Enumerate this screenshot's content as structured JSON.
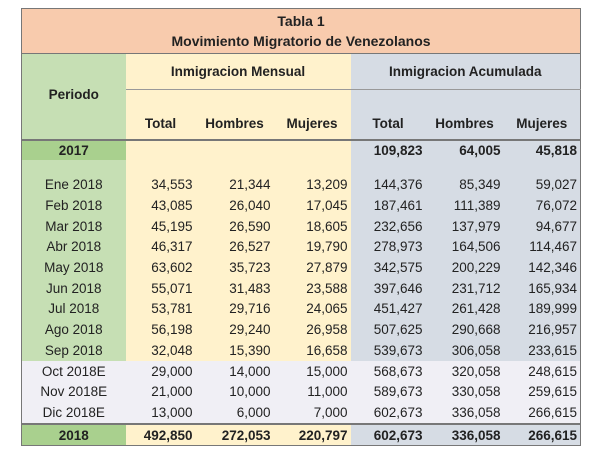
{
  "title": "Tabla 1",
  "subtitle": "Movimiento Migratorio de Venezolanos",
  "headers": {
    "periodo": "Periodo",
    "mensual": "Inmigracion Mensual",
    "acumulada": "Inmigracion Acumulada",
    "cols": [
      "Total",
      "Hombres",
      "Mujeres",
      "Total",
      "Hombres",
      "Mujeres"
    ]
  },
  "row2017": {
    "periodo": "2017",
    "values": [
      "",
      "",
      "",
      "109,823",
      "64,005",
      "45,818"
    ]
  },
  "rows": [
    {
      "periodo": "Ene 2018",
      "values": [
        "34,553",
        "21,344",
        "13,209",
        "144,376",
        "85,349",
        "59,027"
      ]
    },
    {
      "periodo": "Feb 2018",
      "values": [
        "43,085",
        "26,040",
        "17,045",
        "187,461",
        "111,389",
        "76,072"
      ]
    },
    {
      "periodo": "Mar 2018",
      "values": [
        "45,195",
        "26,590",
        "18,605",
        "232,656",
        "137,979",
        "94,677"
      ]
    },
    {
      "periodo": "Abr 2018",
      "values": [
        "46,317",
        "26,527",
        "19,790",
        "278,973",
        "164,506",
        "114,467"
      ]
    },
    {
      "periodo": "May 2018",
      "values": [
        "63,602",
        "35,723",
        "27,879",
        "342,575",
        "200,229",
        "142,346"
      ]
    },
    {
      "periodo": "Jun 2018",
      "values": [
        "55,071",
        "31,483",
        "23,588",
        "397,646",
        "231,712",
        "165,934"
      ]
    },
    {
      "periodo": "Jul 2018",
      "values": [
        "53,781",
        "29,716",
        "24,065",
        "451,427",
        "261,428",
        "189,999"
      ]
    },
    {
      "periodo": "Ago 2018",
      "values": [
        "56,198",
        "29,240",
        "26,958",
        "507,625",
        "290,668",
        "216,957"
      ]
    },
    {
      "periodo": "Sep 2018",
      "values": [
        "32,048",
        "15,390",
        "16,658",
        "539,673",
        "306,058",
        "233,615"
      ]
    },
    {
      "periodo": "Oct 2018E",
      "values": [
        "29,000",
        "14,000",
        "15,000",
        "568,673",
        "320,058",
        "248,615"
      ]
    },
    {
      "periodo": "Nov 2018E",
      "values": [
        "21,000",
        "10,000",
        "11,000",
        "589,673",
        "330,058",
        "259,615"
      ]
    },
    {
      "periodo": "Dic 2018E",
      "values": [
        "13,000",
        "6,000",
        "7,000",
        "602,673",
        "336,058",
        "266,615"
      ]
    }
  ],
  "row2018": {
    "periodo": "2018",
    "values": [
      "492,850",
      "272,053",
      "220,797",
      "602,673",
      "336,058",
      "266,615"
    ]
  },
  "colors": {
    "title": "#f8cbad",
    "periodo": "#c6dfb4",
    "year": "#a9d08e",
    "mensual": "#fff2cc",
    "acumulada": "#d6dce4",
    "estimate": "#f0eff5"
  }
}
